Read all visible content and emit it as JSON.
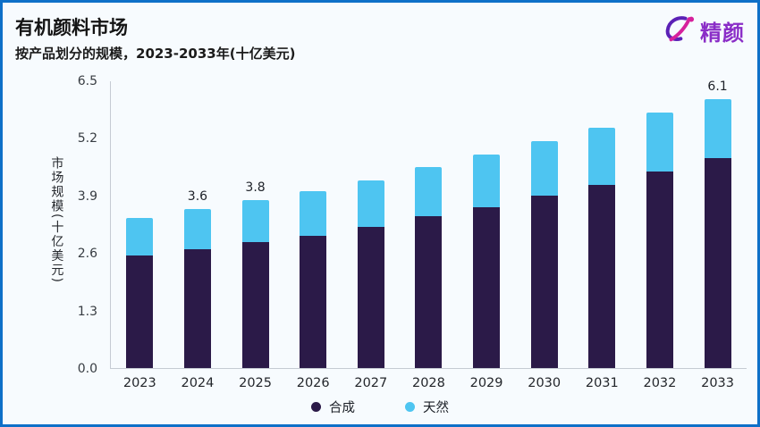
{
  "header": {
    "title": "有机颜料市场",
    "subtitle": "按产品划分的规模，2023-2033年(十亿美元)"
  },
  "logo": {
    "text": "精颜",
    "color": "#8a2dc7"
  },
  "chart_data": {
    "type": "bar",
    "stacked": true,
    "title": "有机颜料市场",
    "subtitle": "按产品划分的规模，2023-2033年(十亿美元)",
    "ylabel": "市场规模(十亿美元)",
    "xlabel": "",
    "ylim": [
      0,
      6.5
    ],
    "grid": false,
    "legend_position": "bottom",
    "yticks": [
      "0.0",
      "1.3",
      "2.6",
      "3.9",
      "5.2",
      "6.5"
    ],
    "categories": [
      "2023",
      "2024",
      "2025",
      "2026",
      "2027",
      "2028",
      "2029",
      "2030",
      "2031",
      "2032",
      "2033"
    ],
    "series": [
      {
        "name": "合成",
        "color": "#2b1a48",
        "values": [
          2.55,
          2.7,
          2.85,
          3.0,
          3.2,
          3.45,
          3.65,
          3.9,
          4.15,
          4.45,
          4.75
        ]
      },
      {
        "name": "天然",
        "color": "#4ec5f1",
        "values": [
          0.85,
          0.9,
          0.95,
          1.0,
          1.05,
          1.1,
          1.2,
          1.25,
          1.3,
          1.35,
          1.35
        ]
      }
    ],
    "totals": [
      3.4,
      3.6,
      3.8,
      4.0,
      4.25,
      4.55,
      4.85,
      5.15,
      5.45,
      5.8,
      6.1
    ],
    "total_labels": [
      "",
      "3.6",
      "3.8",
      "",
      "",
      "",
      "",
      "",
      "",
      "",
      "6.1"
    ]
  }
}
